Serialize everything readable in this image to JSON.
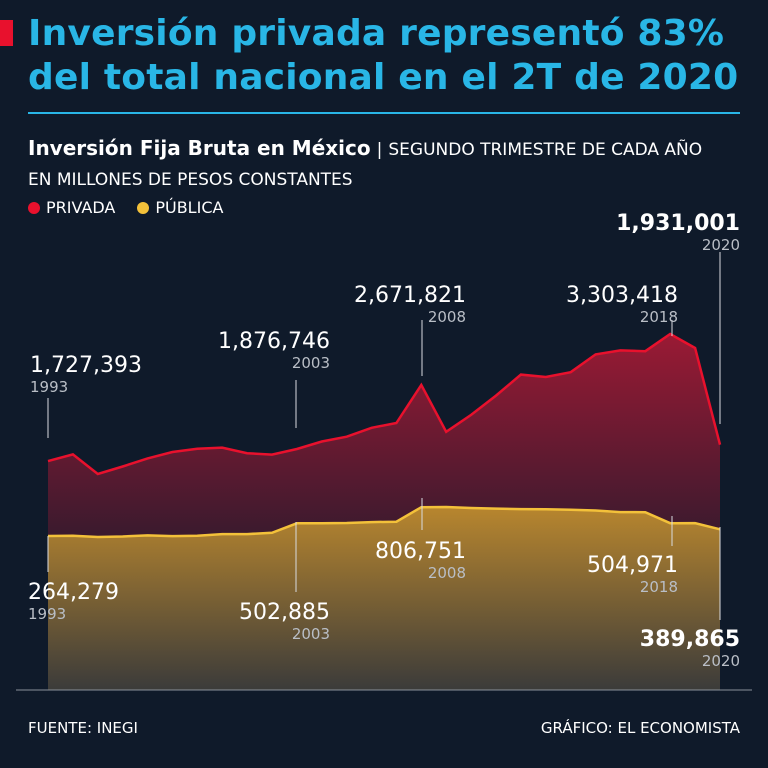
{
  "headline": {
    "line1": "Inversión privada representó 83%",
    "line2": "del total nacional en el 2T de 2020"
  },
  "subtitle": {
    "bold": "Inversión Fija Bruta en México",
    "separator": "|",
    "rest": "SEGUNDO TRIMESTRE DE CADA AÑO EN MILLONES DE PESOS CONSTANTES"
  },
  "legend": [
    {
      "label": "PRIVADA",
      "color": "#e8112d"
    },
    {
      "label": "PÚBLICA",
      "color": "#f3c13a"
    }
  ],
  "footer": {
    "source": "FUENTE: INEGI",
    "credit": "GRÁFICO: EL ECONOMISTA"
  },
  "colors": {
    "background": "#0f1a2a",
    "accent": "#29b6e6",
    "private_line": "#e8112d",
    "public_line": "#f3c13a"
  },
  "chart_data": {
    "type": "area",
    "title": "Inversión Fija Bruta en México",
    "x": [
      1993,
      1994,
      1995,
      1996,
      1997,
      1998,
      1999,
      2000,
      2001,
      2002,
      2003,
      2004,
      2005,
      2006,
      2007,
      2008,
      2009,
      2010,
      2011,
      2012,
      2013,
      2014,
      2015,
      2016,
      2017,
      2018,
      2019,
      2020
    ],
    "series": [
      {
        "name": "PRIVADA",
        "color": "#e8112d",
        "values": [
          1727393,
          1810000,
          1567000,
          1660000,
          1760000,
          1840000,
          1880000,
          1895000,
          1825000,
          1808000,
          1876746,
          1970000,
          2030000,
          2140000,
          2200000,
          2671821,
          2090000,
          2300000,
          2540000,
          2800000,
          2770000,
          2830000,
          3050000,
          3100000,
          3090000,
          3303418,
          3130000,
          1931001
        ]
      },
      {
        "name": "PÚBLICA",
        "color": "#f3c13a",
        "values": [
          264279,
          270000,
          245000,
          255000,
          275000,
          262000,
          270000,
          300000,
          300000,
          325000,
          502885,
          505000,
          510000,
          527000,
          533000,
          806751,
          811000,
          792000,
          781000,
          771000,
          767000,
          760000,
          745000,
          715000,
          712000,
          504971,
          508000,
          389865
        ]
      }
    ],
    "annotations": [
      {
        "series": "PRIVADA",
        "year": "1993",
        "value": "1,727,393",
        "bold": false
      },
      {
        "series": "PRIVADA",
        "year": "2003",
        "value": "1,876,746",
        "bold": false
      },
      {
        "series": "PRIVADA",
        "year": "2008",
        "value": "2,671,821",
        "bold": false
      },
      {
        "series": "PRIVADA",
        "year": "2018",
        "value": "3,303,418",
        "bold": false
      },
      {
        "series": "PRIVADA",
        "year": "2020",
        "value": "1,931,001",
        "bold": true
      },
      {
        "series": "PÚBLICA",
        "year": "1993",
        "value": "264,279",
        "bold": false
      },
      {
        "series": "PÚBLICA",
        "year": "2003",
        "value": "502,885",
        "bold": false
      },
      {
        "series": "PÚBLICA",
        "year": "2008",
        "value": "806,751",
        "bold": false
      },
      {
        "series": "PÚBLICA",
        "year": "2018",
        "value": "504,971",
        "bold": false
      },
      {
        "series": "PÚBLICA",
        "year": "2020",
        "value": "389,865",
        "bold": true
      }
    ],
    "grid": false
  }
}
